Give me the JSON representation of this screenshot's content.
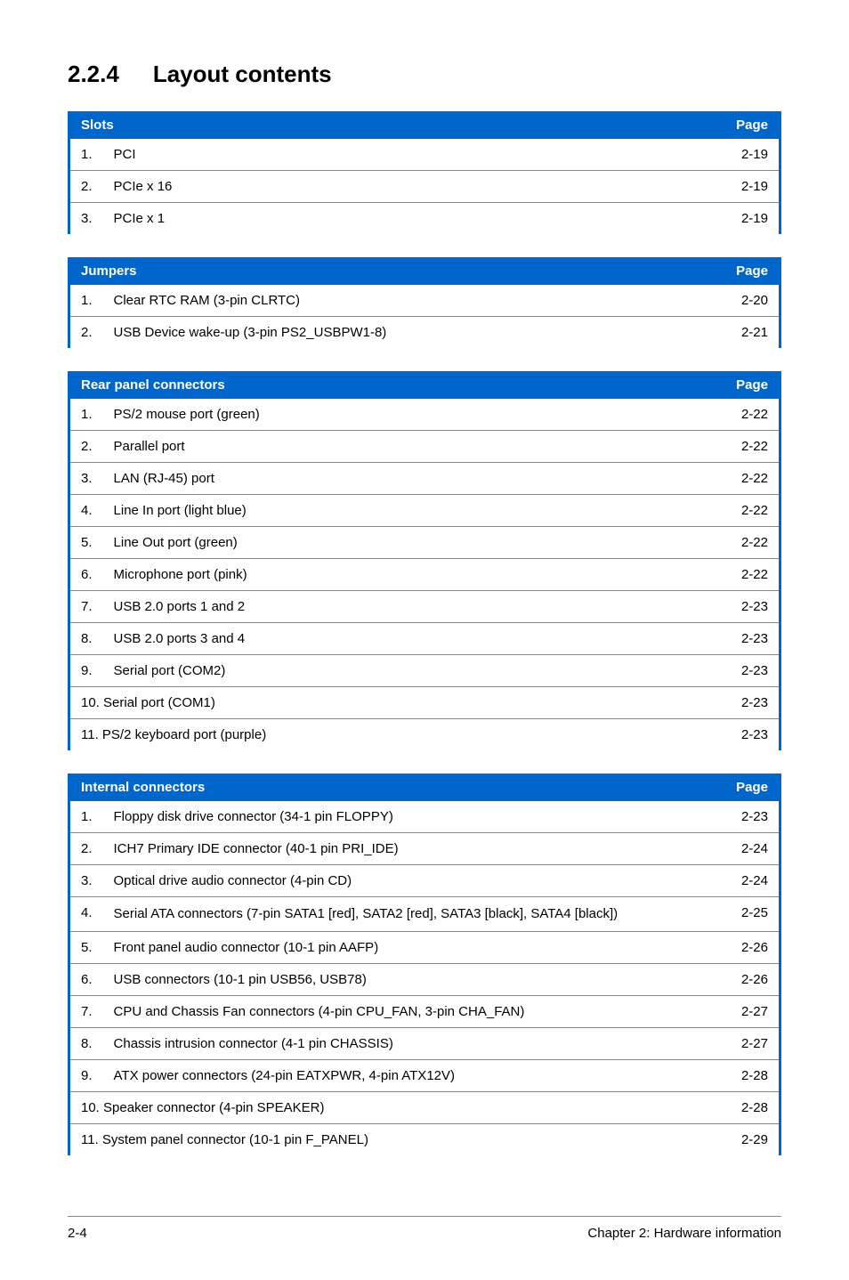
{
  "section": {
    "number": "2.2.4",
    "title": "Layout contents"
  },
  "tables": {
    "slots": {
      "header_left": "Slots",
      "header_right": "Page",
      "rows": [
        {
          "num": "1.",
          "label": "PCI",
          "page": "2-19"
        },
        {
          "num": "2.",
          "label": "PCIe x 16",
          "page": "2-19"
        },
        {
          "num": "3.",
          "label": "PCIe x 1",
          "page": "2-19"
        }
      ]
    },
    "jumpers": {
      "header_left": "Jumpers",
      "header_right": "Page",
      "rows": [
        {
          "num": "1.",
          "label": "Clear RTC RAM (3-pin CLRTC)",
          "page": "2-20"
        },
        {
          "num": "2.",
          "label": "USB Device wake-up (3-pin PS2_USBPW1-8)",
          "page": "2-21"
        }
      ]
    },
    "rear": {
      "header_left": "Rear panel connectors",
      "header_right": "Page",
      "rows": [
        {
          "num": "1.",
          "label": "PS/2 mouse port (green)",
          "page": "2-22"
        },
        {
          "num": "2.",
          "label": "Parallel port",
          "page": "2-22"
        },
        {
          "num": "3.",
          "label": "LAN (RJ-45) port",
          "page": "2-22"
        },
        {
          "num": "4.",
          "label": "Line In port (light blue)",
          "page": "2-22"
        },
        {
          "num": "5.",
          "label": "Line Out port (green)",
          "page": "2-22"
        },
        {
          "num": "6.",
          "label": "Microphone port (pink)",
          "page": "2-22"
        },
        {
          "num": "7.",
          "label": "USB 2.0 ports 1 and 2",
          "page": "2-23"
        },
        {
          "num": "8.",
          "label": "USB 2.0 ports 3 and 4",
          "page": "2-23"
        },
        {
          "num": "9.",
          "label": "Serial port (COM2)",
          "page": "2-23"
        },
        {
          "num": "10.",
          "label": "Serial port (COM1)",
          "page": "2-23"
        },
        {
          "num": "11.",
          "label": "PS/2 keyboard port (purple)",
          "page": "2-23"
        }
      ]
    },
    "internal": {
      "header_left": "Internal connectors",
      "header_right": "Page",
      "rows": [
        {
          "num": "1.",
          "label": "Floppy disk drive connector (34-1 pin FLOPPY)",
          "page": "2-23"
        },
        {
          "num": "2.",
          "label": "ICH7 Primary IDE connector (40-1 pin PRI_IDE)",
          "page": "2-24"
        },
        {
          "num": "3.",
          "label": "Optical drive audio connector (4-pin CD)",
          "page": "2-24"
        },
        {
          "num": "4.",
          "label": "Serial ATA connectors (7-pin SATA1 [red], SATA2 [red], SATA3 [black], SATA4 [black])",
          "page": "2-25"
        },
        {
          "num": "5.",
          "label": "Front panel audio connector (10-1 pin AAFP)",
          "page": "2-26"
        },
        {
          "num": "6.",
          "label": "USB connectors (10-1 pin USB56, USB78)",
          "page": "2-26"
        },
        {
          "num": "7.",
          "label": "CPU and Chassis Fan connectors (4-pin CPU_FAN, 3-pin CHA_FAN)",
          "page": "2-27"
        },
        {
          "num": "8.",
          "label": "Chassis intrusion connector (4-1 pin CHASSIS)",
          "page": "2-27"
        },
        {
          "num": "9.",
          "label": "ATX power connectors (24-pin EATXPWR, 4-pin ATX12V)",
          "page": "2-28"
        },
        {
          "num": "10.",
          "label": "Speaker connector (4-pin SPEAKER)",
          "page": "2-28"
        },
        {
          "num": "11.",
          "label": "System panel connector (10-1 pin F_PANEL)",
          "page": "2-29"
        }
      ]
    }
  },
  "footer": {
    "left": "2-4",
    "right": "Chapter 2: Hardware information"
  },
  "style": {
    "header_bg": "#0066cc",
    "header_fg": "#ffffff",
    "border_color": "#0066cc",
    "row_border": "#888888",
    "body_font_size": 15,
    "title_font_size": 26
  }
}
